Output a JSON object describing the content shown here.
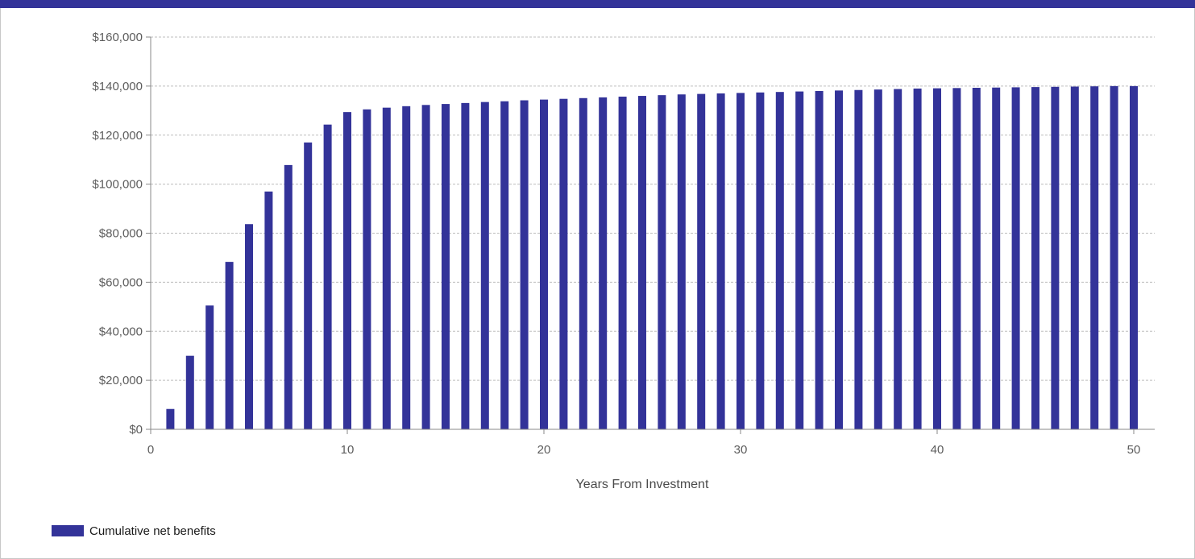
{
  "colors": {
    "header_bar": "#333399",
    "series": "#333399",
    "gridline": "#bdbdbd"
  },
  "chart_data": {
    "type": "bar",
    "title": "",
    "xlabel": "Years From Investment",
    "ylabel": "",
    "xlim": [
      0,
      51
    ],
    "ylim": [
      0,
      160000
    ],
    "x_ticks": [
      0,
      10,
      20,
      30,
      40,
      50
    ],
    "x_tick_labels": [
      "0",
      "10",
      "20",
      "30",
      "40",
      "50"
    ],
    "y_ticks": [
      0,
      20000,
      40000,
      60000,
      80000,
      100000,
      120000,
      140000,
      160000
    ],
    "y_tick_labels": [
      "$0",
      "$20,000",
      "$40,000",
      "$60,000",
      "$80,000",
      "$100,000",
      "$120,000",
      "$140,000",
      "$160,000"
    ],
    "grid": true,
    "legend_position": "bottom-left",
    "categories": [
      1,
      2,
      3,
      4,
      5,
      6,
      7,
      8,
      9,
      10,
      11,
      12,
      13,
      14,
      15,
      16,
      17,
      18,
      19,
      20,
      21,
      22,
      23,
      24,
      25,
      26,
      27,
      28,
      29,
      30,
      31,
      32,
      33,
      34,
      35,
      36,
      37,
      38,
      39,
      40,
      41,
      42,
      43,
      44,
      45,
      46,
      47,
      48,
      49,
      50
    ],
    "series": [
      {
        "name": "Cumulative net benefits",
        "color": "#333399",
        "values": [
          8300,
          30000,
          50500,
          68300,
          83700,
          97000,
          107800,
          117000,
          124300,
          129400,
          130500,
          131200,
          131800,
          132300,
          132700,
          133100,
          133500,
          133800,
          134200,
          134500,
          134800,
          135100,
          135400,
          135700,
          136000,
          136300,
          136600,
          136800,
          137000,
          137200,
          137400,
          137600,
          137800,
          138000,
          138200,
          138400,
          138600,
          138800,
          139000,
          139100,
          139200,
          139300,
          139400,
          139500,
          139600,
          139700,
          139800,
          139900,
          140000,
          140000
        ]
      }
    ]
  }
}
